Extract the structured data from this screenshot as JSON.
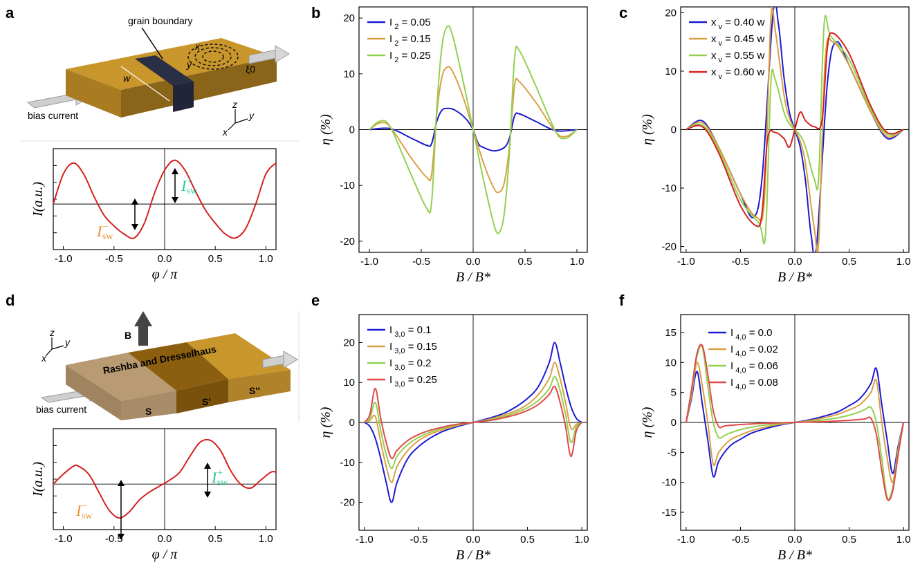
{
  "panels": {
    "a": {
      "label": "a",
      "diagram": {
        "grain_boundary": "grain boundary",
        "bias_current": "bias current",
        "w": "w",
        "xv": "x",
        "yv": "y",
        "xi0": "ξ0",
        "axes": [
          "z",
          "y",
          "x"
        ]
      },
      "isw_plus": "I",
      "isw_plus_sup": "+",
      "isw_plus_sub": "sw",
      "isw_minus": "I",
      "isw_minus_sup": "−",
      "isw_minus_sub": "sw"
    },
    "b": {
      "label": "b"
    },
    "c": {
      "label": "c"
    },
    "d": {
      "label": "d",
      "diagram": {
        "field": "B",
        "title": "Rashba and Dresselhaus",
        "bias_current": "bias current",
        "s1": "S",
        "s2": "S'",
        "s3": "S''",
        "axes": [
          "z",
          "y",
          "x"
        ]
      },
      "isw_plus": "I",
      "isw_plus_sup": "+",
      "isw_plus_sub": "sw",
      "isw_minus": "I",
      "isw_minus_sup": "−",
      "isw_minus_sub": "sw"
    },
    "e": {
      "label": "e"
    },
    "f": {
      "label": "f"
    }
  },
  "colors": {
    "red": "#d42020",
    "blue": "#1a1ad4",
    "orange": "#d9a040",
    "green": "#92d050",
    "lightred": "#e04848",
    "isw_plus": "#1fc89a",
    "isw_minus": "#e6902a",
    "gold": "#c9962c"
  },
  "chart_data": [
    {
      "id": "a",
      "type": "line",
      "xlabel": "φ / π",
      "ylabel": "I(a.u.)",
      "xlim": [
        -1.1,
        1.1
      ],
      "xticks": [
        "-1.0",
        "-0.5",
        "0.0",
        "0.5",
        "1.0"
      ],
      "yticks": [],
      "series": [
        {
          "x": [
            -1.1,
            -1.0,
            -0.9,
            -0.8,
            -0.7,
            -0.6,
            -0.5,
            -0.4,
            -0.3,
            -0.2,
            -0.1,
            0.0,
            0.1,
            0.2,
            0.3,
            0.4,
            0.5,
            0.6,
            0.7,
            0.8,
            0.9,
            1.0,
            1.1
          ],
          "y": [
            0.0,
            0.55,
            0.75,
            0.55,
            0.15,
            -0.2,
            -0.4,
            -0.55,
            -0.62,
            -0.35,
            0.2,
            0.62,
            0.8,
            0.62,
            0.25,
            -0.1,
            -0.35,
            -0.55,
            -0.62,
            -0.45,
            0.0,
            0.55,
            0.75
          ]
        }
      ]
    },
    {
      "id": "b",
      "type": "line",
      "xlabel": "B / B*",
      "ylabel": "η (%)",
      "xlim": [
        -1.1,
        1.1
      ],
      "ylim": [
        -22,
        22
      ],
      "xticks": [
        "-1.0",
        "-0.5",
        "0.0",
        "0.5",
        "1.0"
      ],
      "yticks": [
        "-20",
        "-10",
        "0",
        "10",
        "20"
      ],
      "series": [
        {
          "name": "I 2 = 0.05",
          "x": [
            -1.0,
            -0.8,
            -0.6,
            -0.45,
            -0.4,
            -0.35,
            -0.3,
            -0.25,
            -0.2,
            -0.15,
            -0.1,
            -0.05,
            0.0,
            0.05,
            0.1,
            0.2,
            0.3,
            0.35,
            0.4,
            0.45,
            0.6,
            0.8,
            1.0
          ],
          "y": [
            0,
            0.2,
            -1.5,
            -2.8,
            -2.5,
            1.5,
            3.5,
            3.8,
            3.7,
            3.2,
            2.5,
            1.5,
            0,
            -2.5,
            -3.2,
            -3.8,
            -3.2,
            -1.5,
            2.5,
            2.8,
            1.5,
            -0.2,
            0
          ]
        },
        {
          "name": "I 2 = 0.15",
          "x": [
            -1.0,
            -0.9,
            -0.8,
            -0.6,
            -0.45,
            -0.4,
            -0.35,
            -0.3,
            -0.25,
            -0.2,
            -0.1,
            0.0,
            0.1,
            0.2,
            0.25,
            0.3,
            0.35,
            0.4,
            0.45,
            0.6,
            0.8,
            0.9,
            1.0
          ],
          "y": [
            0,
            1.2,
            0.5,
            -5,
            -8.5,
            -8.0,
            3,
            9.5,
            11.2,
            10.5,
            6,
            0,
            -6,
            -10.5,
            -11.2,
            -9.5,
            -3,
            8.0,
            8.5,
            5,
            -0.5,
            -1.2,
            0
          ]
        },
        {
          "name": "I 2 = 0.25",
          "x": [
            -1.0,
            -0.9,
            -0.8,
            -0.6,
            -0.45,
            -0.4,
            -0.35,
            -0.3,
            -0.25,
            -0.2,
            -0.1,
            0.0,
            0.1,
            0.2,
            0.25,
            0.3,
            0.35,
            0.4,
            0.45,
            0.6,
            0.8,
            0.9,
            1.0
          ],
          "y": [
            0,
            1.5,
            0.5,
            -8,
            -14,
            -13,
            4,
            15,
            18.5,
            17,
            9,
            0,
            -9,
            -17,
            -18.5,
            -15,
            -4,
            13,
            14,
            8,
            -0.5,
            -1.5,
            0
          ]
        }
      ]
    },
    {
      "id": "c",
      "type": "line",
      "xlabel": "B / B*",
      "ylabel": "η (%)",
      "xlim": [
        -1.05,
        1.05
      ],
      "ylim": [
        -21,
        21
      ],
      "xticks": [
        "-1.0",
        "-0.5",
        "0.0",
        "0.5",
        "1.0"
      ],
      "yticks": [
        "-20",
        "-10",
        "0",
        "10",
        "20"
      ],
      "series": [
        {
          "name": "x v = 0.40 w",
          "x": [
            -1.0,
            -0.85,
            -0.7,
            -0.5,
            -0.38,
            -0.3,
            -0.2,
            -0.15,
            -0.1,
            -0.05,
            0.0,
            0.05,
            0.1,
            0.15,
            0.2,
            0.3,
            0.38,
            0.5,
            0.7,
            0.85,
            1.0
          ],
          "y": [
            0,
            1.5,
            -3,
            -11,
            -15,
            -8,
            20,
            18,
            9,
            3,
            0,
            -3,
            -9,
            -18,
            -20,
            8,
            15,
            11,
            3,
            -1.5,
            0
          ]
        },
        {
          "name": "x v = 0.45 w",
          "x": [
            -1.0,
            -0.85,
            -0.7,
            -0.5,
            -0.35,
            -0.28,
            -0.22,
            -0.18,
            -0.1,
            -0.05,
            0.0,
            0.05,
            0.1,
            0.18,
            0.22,
            0.28,
            0.35,
            0.5,
            0.7,
            0.85,
            1.0
          ],
          "y": [
            0,
            1.2,
            -3,
            -11,
            -15,
            -12,
            19,
            17,
            6,
            2,
            0,
            -2,
            -6,
            -17,
            -19,
            12,
            15,
            11,
            3,
            -1.2,
            0
          ]
        },
        {
          "name": "x v = 0.55 w",
          "x": [
            -1.0,
            -0.85,
            -0.7,
            -0.5,
            -0.33,
            -0.27,
            -0.22,
            -0.18,
            -0.1,
            -0.05,
            0.0,
            0.05,
            0.1,
            0.18,
            0.22,
            0.27,
            0.33,
            0.5,
            0.7,
            0.85,
            1.0
          ],
          "y": [
            0,
            0.8,
            -3.5,
            -12,
            -16,
            -18,
            8,
            8.5,
            3,
            1,
            0,
            -1,
            -3,
            -8.5,
            -8,
            18,
            16,
            12,
            3.5,
            -0.8,
            0
          ]
        },
        {
          "name": "x v = 0.60 w",
          "x": [
            -1.0,
            -0.85,
            -0.7,
            -0.5,
            -0.35,
            -0.3,
            -0.25,
            -0.18,
            -0.1,
            -0.05,
            0.0,
            0.05,
            0.1,
            0.18,
            0.25,
            0.3,
            0.35,
            0.5,
            0.7,
            0.85,
            1.0
          ],
          "y": [
            0,
            0.5,
            -4,
            -13,
            -16.5,
            -14,
            -1.5,
            -0.5,
            -1.5,
            -3,
            0,
            3,
            1.5,
            0.5,
            1.5,
            14,
            16.5,
            13,
            4,
            -0.5,
            0
          ]
        }
      ]
    },
    {
      "id": "d",
      "type": "line",
      "xlabel": "φ / π",
      "ylabel": "I(a.u.)",
      "xlim": [
        -1.1,
        1.1
      ],
      "xticks": [
        "-1.0",
        "-0.5",
        "0.0",
        "0.5",
        "1.0"
      ],
      "yticks": [],
      "series": [
        {
          "x": [
            -1.1,
            -1.0,
            -0.9,
            -0.85,
            -0.75,
            -0.65,
            -0.55,
            -0.45,
            -0.35,
            -0.25,
            -0.15,
            -0.05,
            0.05,
            0.15,
            0.25,
            0.35,
            0.45,
            0.55,
            0.65,
            0.75,
            0.85,
            0.95,
            1.05,
            1.1
          ],
          "y": [
            0.0,
            0.25,
            0.45,
            0.45,
            0.25,
            -0.2,
            -0.65,
            -0.85,
            -0.7,
            -0.4,
            -0.2,
            -0.05,
            0.1,
            0.3,
            0.7,
            1.05,
            1.1,
            0.85,
            0.35,
            0.0,
            -0.1,
            0.1,
            0.3,
            0.3
          ]
        }
      ]
    },
    {
      "id": "e",
      "type": "line",
      "xlabel": "B / B*",
      "ylabel": "η (%)",
      "xlim": [
        -1.05,
        1.05
      ],
      "ylim": [
        -27,
        27
      ],
      "xticks": [
        "-1.0",
        "-0.5",
        "0.0",
        "0.5",
        "1.0"
      ],
      "yticks": [
        "-20",
        "-10",
        "0",
        "10",
        "20"
      ],
      "series": [
        {
          "name": "I 3,0 = 0.1",
          "x": [
            -1.0,
            -0.95,
            -0.9,
            -0.85,
            -0.8,
            -0.75,
            -0.7,
            -0.6,
            -0.5,
            -0.4,
            -0.3,
            -0.2,
            -0.1,
            0.0,
            0.1,
            0.2,
            0.3,
            0.4,
            0.5,
            0.6,
            0.7,
            0.75,
            0.8,
            0.85,
            0.9,
            0.95,
            1.0
          ],
          "y": [
            0,
            -1,
            -4,
            -9,
            -15,
            -20,
            -15,
            -9,
            -6,
            -4,
            -2.5,
            -1.5,
            -0.7,
            0,
            0.7,
            1.5,
            2.5,
            4,
            6,
            9,
            15,
            20,
            15,
            9,
            4,
            1,
            0
          ]
        },
        {
          "name": "I 3,0 = 0.15",
          "x": [
            -1.0,
            -0.95,
            -0.9,
            -0.85,
            -0.8,
            -0.75,
            -0.7,
            -0.6,
            -0.5,
            -0.4,
            -0.3,
            -0.2,
            -0.1,
            0.0,
            0.1,
            0.2,
            0.3,
            0.4,
            0.5,
            0.6,
            0.7,
            0.75,
            0.8,
            0.85,
            0.9,
            0.95,
            1.0
          ],
          "y": [
            0,
            0.5,
            1.5,
            -5,
            -11,
            -15,
            -11,
            -7,
            -4.5,
            -3,
            -2,
            -1.2,
            -0.5,
            0,
            0.5,
            1.2,
            2,
            3,
            4.5,
            7,
            11,
            15,
            11,
            5,
            -1.5,
            -0.5,
            0
          ]
        },
        {
          "name": "I 3,0 = 0.2",
          "x": [
            -1.0,
            -0.95,
            -0.9,
            -0.85,
            -0.8,
            -0.75,
            -0.7,
            -0.6,
            -0.5,
            -0.4,
            -0.3,
            -0.2,
            -0.1,
            0.0,
            0.1,
            0.2,
            0.3,
            0.4,
            0.5,
            0.6,
            0.7,
            0.75,
            0.8,
            0.85,
            0.9,
            0.95,
            1.0
          ],
          "y": [
            0,
            1,
            5,
            -2,
            -8,
            -11.5,
            -8.5,
            -5.5,
            -3.7,
            -2.5,
            -1.6,
            -0.9,
            -0.4,
            0,
            0.4,
            0.9,
            1.6,
            2.5,
            3.7,
            5.5,
            8.5,
            11.5,
            8,
            2,
            -5,
            -1,
            0
          ]
        },
        {
          "name": "I 3,0 = 0.25",
          "x": [
            -1.0,
            -0.95,
            -0.9,
            -0.85,
            -0.8,
            -0.75,
            -0.7,
            -0.6,
            -0.5,
            -0.4,
            -0.3,
            -0.2,
            -0.1,
            0.0,
            0.1,
            0.2,
            0.3,
            0.4,
            0.5,
            0.6,
            0.7,
            0.75,
            0.8,
            0.85,
            0.9,
            0.95,
            1.0
          ],
          "y": [
            0,
            2,
            8.5,
            1,
            -5,
            -9,
            -7,
            -4.5,
            -3,
            -2,
            -1.3,
            -0.7,
            -0.3,
            0,
            0.3,
            0.7,
            1.3,
            2,
            3,
            4.5,
            7,
            9,
            5,
            -1,
            -8.5,
            -2,
            0
          ]
        }
      ]
    },
    {
      "id": "f",
      "type": "line",
      "xlabel": "B / B*",
      "ylabel": "η (%)",
      "xlim": [
        -1.05,
        1.05
      ],
      "ylim": [
        -18,
        18
      ],
      "xticks": [
        "-1.0",
        "-0.5",
        "0.0",
        "0.5",
        "1.0"
      ],
      "yticks": [
        "-15",
        "-10",
        "-5",
        "0",
        "5",
        "10",
        "15"
      ],
      "series": [
        {
          "name": "I 4,0 = 0.0",
          "x": [
            -1.0,
            -0.95,
            -0.9,
            -0.85,
            -0.8,
            -0.75,
            -0.7,
            -0.6,
            -0.5,
            -0.4,
            -0.3,
            -0.2,
            -0.1,
            0.0,
            0.1,
            0.2,
            0.3,
            0.4,
            0.5,
            0.6,
            0.7,
            0.75,
            0.8,
            0.85,
            0.9,
            0.95,
            1.0
          ],
          "y": [
            0,
            4,
            8.5,
            3,
            -3,
            -9,
            -6.5,
            -4,
            -2.8,
            -1.8,
            -1.2,
            -0.7,
            -0.3,
            0,
            0.3,
            0.7,
            1.2,
            1.8,
            2.8,
            4,
            6.5,
            9,
            3,
            -3,
            -8.5,
            -4,
            0
          ]
        },
        {
          "name": "I 4,0 = 0.02",
          "x": [
            -1.0,
            -0.95,
            -0.9,
            -0.85,
            -0.8,
            -0.75,
            -0.7,
            -0.6,
            -0.5,
            -0.4,
            -0.3,
            -0.2,
            -0.1,
            0.0,
            0.1,
            0.2,
            0.3,
            0.4,
            0.5,
            0.6,
            0.7,
            0.75,
            0.8,
            0.85,
            0.9,
            0.95,
            1.0
          ],
          "y": [
            0,
            4.5,
            10,
            6,
            0,
            -7,
            -5,
            -3,
            -2.1,
            -1.4,
            -0.9,
            -0.5,
            -0.2,
            0,
            0.2,
            0.5,
            0.9,
            1.4,
            2.1,
            3,
            5,
            7,
            0,
            -6,
            -10,
            -4.5,
            0
          ]
        },
        {
          "name": "I 4,0 = 0.06",
          "x": [
            -1.0,
            -0.95,
            -0.9,
            -0.85,
            -0.8,
            -0.75,
            -0.7,
            -0.65,
            -0.6,
            -0.5,
            -0.4,
            -0.3,
            -0.2,
            -0.1,
            0.0,
            0.1,
            0.2,
            0.3,
            0.4,
            0.5,
            0.6,
            0.65,
            0.7,
            0.75,
            0.8,
            0.85,
            0.9,
            0.95,
            1.0
          ],
          "y": [
            0,
            5,
            11,
            12.5,
            6,
            0,
            -2.5,
            -2.2,
            -1.8,
            -1.2,
            -0.8,
            -0.5,
            -0.3,
            -0.1,
            0,
            0.1,
            0.3,
            0.5,
            0.8,
            1.2,
            1.8,
            2.2,
            2.5,
            0,
            -6,
            -12.5,
            -11,
            -5,
            0
          ]
        },
        {
          "name": "I 4,0 = 0.08",
          "x": [
            -1.0,
            -0.95,
            -0.9,
            -0.85,
            -0.8,
            -0.75,
            -0.7,
            -0.65,
            -0.6,
            -0.5,
            -0.4,
            -0.3,
            -0.2,
            -0.1,
            0.0,
            0.1,
            0.2,
            0.3,
            0.4,
            0.5,
            0.6,
            0.65,
            0.7,
            0.75,
            0.8,
            0.85,
            0.9,
            0.95,
            1.0
          ],
          "y": [
            0,
            5.5,
            11.5,
            12.8,
            8,
            2,
            -0.7,
            -0.6,
            -0.5,
            -0.35,
            -0.25,
            -0.15,
            -0.1,
            -0.05,
            0,
            0.05,
            0.1,
            0.15,
            0.25,
            0.35,
            0.5,
            0.6,
            0.7,
            -2,
            -8,
            -12.8,
            -11.5,
            -5.5,
            0
          ]
        }
      ]
    }
  ]
}
